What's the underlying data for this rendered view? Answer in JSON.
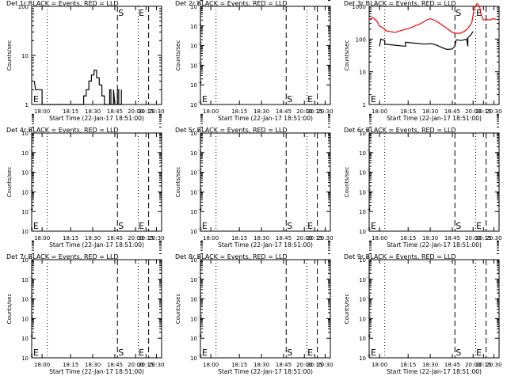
{
  "x_ticks": [
    "18:00",
    "18:15",
    "18:30",
    "18:45",
    "20:00",
    "20:15",
    "20:30"
  ],
  "xlabel": "Start Time (22-Jan-17 18:51:00)",
  "ylabel": "Counts/sec",
  "colors": {
    "events": "#000000",
    "lld": "#ff0000",
    "axes": "#000000"
  },
  "chart_data": [
    {
      "title": "Det 1r BLACK = Events, RED = LLD",
      "type": "line",
      "yscale": "log",
      "y_ticks": [
        "1",
        "10",
        "100"
      ],
      "yexp": [
        0,
        1,
        2
      ],
      "markers": [
        {
          "label": "E",
          "pos": "left"
        },
        {
          "label": "S",
          "pos": "top"
        },
        {
          "label": "E",
          "pos": "top"
        }
      ],
      "series": [
        {
          "name": "Events",
          "color": "#000000",
          "points": [
            [
              0.02,
              3
            ],
            [
              0.03,
              2
            ],
            [
              0.04,
              2
            ],
            [
              0.08,
              2
            ],
            [
              0.08,
              1
            ],
            [
              0.4,
              1
            ],
            [
              0.4,
              1.5
            ],
            [
              0.42,
              1.5
            ],
            [
              0.42,
              2
            ],
            [
              0.44,
              2
            ],
            [
              0.44,
              3
            ],
            [
              0.46,
              3
            ],
            [
              0.46,
              4
            ],
            [
              0.48,
              4
            ],
            [
              0.48,
              5
            ],
            [
              0.5,
              5
            ],
            [
              0.5,
              3.5
            ],
            [
              0.52,
              3.5
            ],
            [
              0.52,
              2.5
            ],
            [
              0.54,
              2.5
            ],
            [
              0.54,
              1.5
            ],
            [
              0.56,
              1.5
            ],
            [
              0.56,
              1
            ],
            [
              0.6,
              1
            ],
            [
              0.6,
              2
            ],
            [
              0.61,
              2
            ],
            [
              0.61,
              1
            ],
            [
              0.63,
              1
            ],
            [
              0.63,
              2
            ],
            [
              0.64,
              1
            ],
            [
              0.66,
              1
            ],
            [
              0.66,
              2
            ],
            [
              0.67,
              2
            ],
            [
              0.67,
              1
            ],
            [
              0.69,
              1
            ],
            [
              0.69,
              2
            ]
          ]
        }
      ]
    },
    {
      "title": "Det 2r BLACK = Events, RED = LLD",
      "type": "line",
      "yscale": "log",
      "y_ticks": [
        "10",
        "10",
        "10",
        "10",
        "10",
        "10"
      ],
      "yexp": [
        0,
        -1,
        -2,
        -3,
        -4,
        -5
      ],
      "markers": [
        {
          "label": "E",
          "pos": "left"
        },
        {
          "label": "S",
          "pos": "bottom"
        },
        {
          "label": "E",
          "pos": "bottom"
        }
      ],
      "series": []
    },
    {
      "title": "Det 3r BLACK = Events, RED = LLD",
      "type": "line",
      "yscale": "log",
      "y_ticks": [
        "1",
        "10",
        "100",
        "1000"
      ],
      "yexp": [
        0,
        1,
        2,
        3
      ],
      "markers": [
        {
          "label": "E",
          "pos": "left"
        },
        {
          "label": "S",
          "pos": "top"
        },
        {
          "label": "E",
          "pos": "top"
        }
      ],
      "series": [
        {
          "name": "LLD",
          "color": "#ff0000",
          "points": [
            [
              0.0,
              400
            ],
            [
              0.03,
              450
            ],
            [
              0.06,
              350
            ],
            [
              0.08,
              250
            ],
            [
              0.1,
              230
            ],
            [
              0.13,
              180
            ],
            [
              0.16,
              170
            ],
            [
              0.2,
              160
            ],
            [
              0.24,
              180
            ],
            [
              0.28,
              200
            ],
            [
              0.32,
              220
            ],
            [
              0.36,
              260
            ],
            [
              0.4,
              300
            ],
            [
              0.44,
              380
            ],
            [
              0.47,
              420
            ],
            [
              0.5,
              380
            ],
            [
              0.53,
              330
            ],
            [
              0.56,
              270
            ],
            [
              0.6,
              210
            ],
            [
              0.63,
              170
            ],
            [
              0.66,
              150
            ],
            [
              0.7,
              150
            ],
            [
              0.73,
              170
            ],
            [
              0.76,
              210
            ],
            [
              0.79,
              320
            ],
            [
              0.81,
              900
            ],
            [
              0.83,
              1200
            ],
            [
              0.85,
              1000
            ],
            [
              0.86,
              600
            ],
            [
              0.88,
              380
            ],
            [
              0.9,
              400
            ],
            [
              0.93,
              380
            ],
            [
              0.95,
              420
            ],
            [
              0.98,
              400
            ]
          ]
        },
        {
          "name": "Events",
          "color": "#000000",
          "points": [
            [
              0.08,
              60
            ],
            [
              0.09,
              100
            ],
            [
              0.12,
              90
            ],
            [
              0.12,
              70
            ],
            [
              0.2,
              65
            ],
            [
              0.28,
              60
            ],
            [
              0.28,
              80
            ],
            [
              0.35,
              75
            ],
            [
              0.42,
              70
            ],
            [
              0.48,
              72
            ],
            [
              0.52,
              65
            ],
            [
              0.56,
              55
            ],
            [
              0.6,
              48
            ],
            [
              0.64,
              50
            ],
            [
              0.66,
              60
            ],
            [
              0.67,
              95
            ],
            [
              0.71,
              90
            ],
            [
              0.73,
              95
            ],
            [
              0.75,
              100
            ],
            [
              0.76,
              60
            ],
            [
              0.76,
              110
            ],
            [
              0.78,
              130
            ],
            [
              0.79,
              150
            ],
            [
              0.8,
              170
            ]
          ]
        }
      ]
    },
    {
      "title": "Det 4r BLACK = Events, RED = LLD",
      "type": "line",
      "yscale": "log",
      "y_ticks": [
        "10",
        "10",
        "10",
        "10",
        "10",
        "10"
      ],
      "yexp": [
        0,
        -1,
        -2,
        -3,
        -4,
        -5
      ],
      "markers": [
        {
          "label": "E",
          "pos": "left"
        },
        {
          "label": "S",
          "pos": "bottom"
        },
        {
          "label": "E",
          "pos": "bottom"
        }
      ],
      "series": []
    },
    {
      "title": "Det 5r BLACK = Events, RED = LLD",
      "type": "line",
      "yscale": "log",
      "y_ticks": [
        "10",
        "10",
        "10",
        "10",
        "10",
        "10"
      ],
      "yexp": [
        0,
        -1,
        -2,
        -3,
        -4,
        -5
      ],
      "markers": [
        {
          "label": "E",
          "pos": "left"
        },
        {
          "label": "S",
          "pos": "bottom"
        },
        {
          "label": "E",
          "pos": "bottom"
        }
      ],
      "series": []
    },
    {
      "title": "Det 6r BLACK = Events, RED = LLD",
      "type": "line",
      "yscale": "log",
      "y_ticks": [
        "10",
        "10",
        "10",
        "10",
        "10",
        "10"
      ],
      "yexp": [
        0,
        -1,
        -2,
        -3,
        -4,
        -5
      ],
      "markers": [
        {
          "label": "E",
          "pos": "left"
        },
        {
          "label": "S",
          "pos": "bottom"
        },
        {
          "label": "E",
          "pos": "bottom"
        }
      ],
      "series": []
    },
    {
      "title": "Det 7r BLACK = Events, RED = LLD",
      "type": "line",
      "yscale": "log",
      "y_ticks": [
        "10",
        "10",
        "10",
        "10",
        "10",
        "10"
      ],
      "yexp": [
        0,
        -1,
        -2,
        -3,
        -4,
        -5
      ],
      "markers": [
        {
          "label": "E",
          "pos": "left"
        },
        {
          "label": "S",
          "pos": "bottom"
        },
        {
          "label": "E",
          "pos": "bottom"
        }
      ],
      "series": []
    },
    {
      "title": "Det 8r BLACK = Events, RED = LLD",
      "type": "line",
      "yscale": "log",
      "y_ticks": [
        "10",
        "10",
        "10",
        "10",
        "10",
        "10"
      ],
      "yexp": [
        0,
        -1,
        -2,
        -3,
        -4,
        -5
      ],
      "markers": [
        {
          "label": "E",
          "pos": "left"
        },
        {
          "label": "S",
          "pos": "bottom"
        },
        {
          "label": "E",
          "pos": "bottom"
        }
      ],
      "series": []
    },
    {
      "title": "Det 9r BLACK = Events, RED = LLD",
      "type": "line",
      "yscale": "log",
      "y_ticks": [
        "10",
        "10",
        "10",
        "10",
        "10",
        "10"
      ],
      "yexp": [
        0,
        -1,
        -2,
        -3,
        -4,
        -5
      ],
      "markers": [
        {
          "label": "E",
          "pos": "left"
        },
        {
          "label": "S",
          "pos": "bottom"
        },
        {
          "label": "E",
          "pos": "bottom"
        }
      ],
      "series": []
    }
  ]
}
